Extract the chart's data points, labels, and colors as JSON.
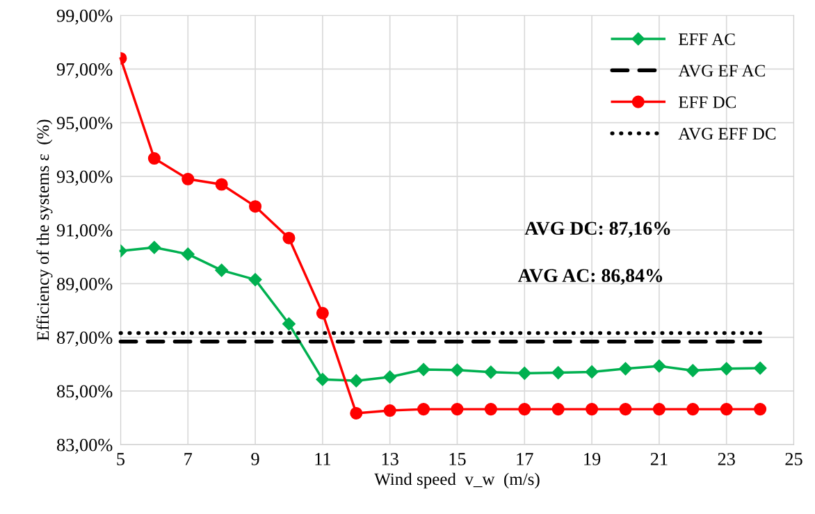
{
  "chart_data": {
    "type": "line",
    "xlabel": "Wind speed  v_w  (m/s)",
    "ylabel": "Efficiency of the systems ε  (%)",
    "x": [
      5,
      6,
      7,
      8,
      9,
      10,
      11,
      12,
      13,
      14,
      15,
      16,
      17,
      18,
      19,
      20,
      21,
      22,
      23,
      24
    ],
    "series": [
      {
        "name": "EFF AC",
        "color": "#00b050",
        "marker": "diamond",
        "line_style": "solid",
        "values": [
          90.22,
          90.35,
          90.1,
          89.5,
          89.15,
          87.5,
          85.43,
          85.38,
          85.52,
          85.8,
          85.78,
          85.7,
          85.66,
          85.68,
          85.71,
          85.83,
          85.93,
          85.76,
          85.83,
          85.85
        ]
      },
      {
        "name": "AVG EF AC",
        "color": "#000000",
        "marker": "none",
        "line_style": "dashed",
        "values": [
          86.84,
          86.84,
          86.84,
          86.84,
          86.84,
          86.84,
          86.84,
          86.84,
          86.84,
          86.84,
          86.84,
          86.84,
          86.84,
          86.84,
          86.84,
          86.84,
          86.84,
          86.84,
          86.84,
          86.84
        ]
      },
      {
        "name": "EFF DC",
        "color": "#ff0000",
        "marker": "circle",
        "line_style": "solid",
        "values": [
          97.4,
          93.67,
          92.9,
          92.7,
          91.88,
          90.7,
          87.9,
          84.17,
          84.27,
          84.32,
          84.32,
          84.32,
          84.32,
          84.32,
          84.32,
          84.32,
          84.32,
          84.32,
          84.32,
          84.32
        ]
      },
      {
        "name": "AVG EFF DC",
        "color": "#000000",
        "marker": "none",
        "line_style": "dotted",
        "values": [
          87.16,
          87.16,
          87.16,
          87.16,
          87.16,
          87.16,
          87.16,
          87.16,
          87.16,
          87.16,
          87.16,
          87.16,
          87.16,
          87.16,
          87.16,
          87.16,
          87.16,
          87.16,
          87.16,
          87.16
        ]
      }
    ],
    "annotations": [
      "AVG DC: 87,16%",
      "AVG AC: 86,84%"
    ],
    "xlim": [
      5,
      25
    ],
    "xticks": [
      5,
      7,
      9,
      11,
      13,
      15,
      17,
      19,
      21,
      23,
      25
    ],
    "ylim": [
      83,
      99
    ],
    "yticks": [
      {
        "value": 83,
        "label": "83,00%"
      },
      {
        "value": 85,
        "label": "85,00%"
      },
      {
        "value": 87,
        "label": "87,00%"
      },
      {
        "value": 89,
        "label": "89,00%"
      },
      {
        "value": 91,
        "label": "91,00%"
      },
      {
        "value": 93,
        "label": "93,00%"
      },
      {
        "value": 95,
        "label": "95,00%"
      },
      {
        "value": 97,
        "label": "97,00%"
      },
      {
        "value": 99,
        "label": "99,00%"
      }
    ],
    "grid": true,
    "legend": "top right"
  }
}
